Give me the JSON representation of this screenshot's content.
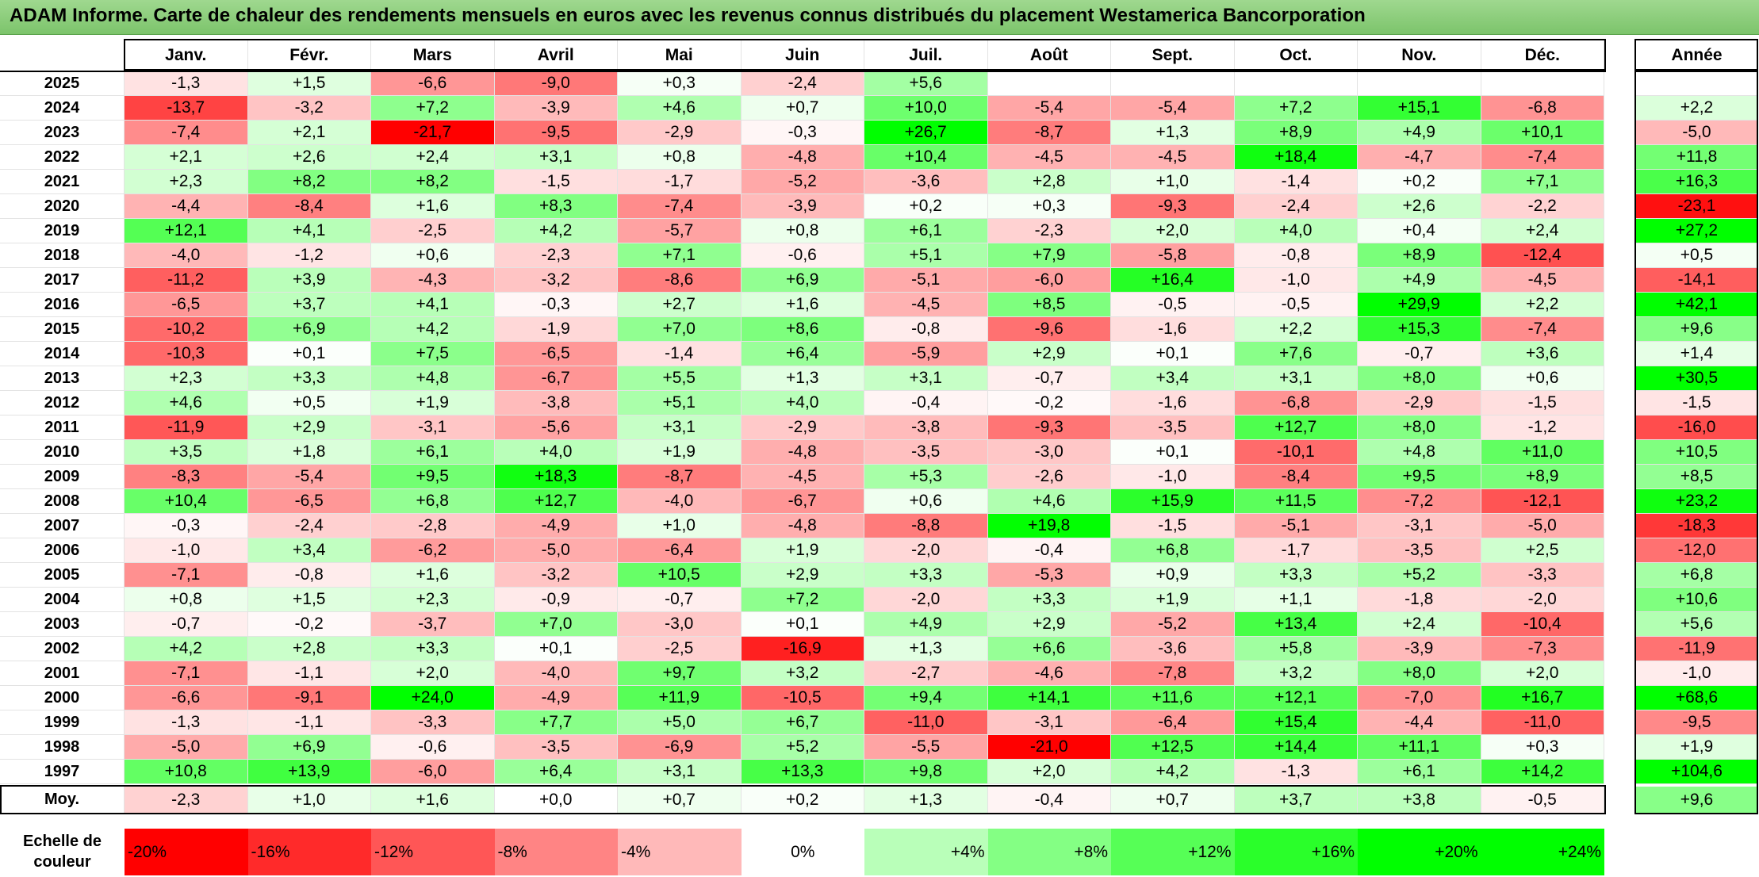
{
  "chart_data": {
    "type": "heatmap",
    "title": "ADAM Informe. Carte de chaleur des rendements mensuels en euros avec les revenus connus distribués du placement Westamerica Bancorporation",
    "columns": [
      "Janv.",
      "Févr.",
      "Mars",
      "Avril",
      "Mai",
      "Juin",
      "Juil.",
      "Août",
      "Sept.",
      "Oct.",
      "Nov.",
      "Déc."
    ],
    "year_header": "Année",
    "rows": [
      {
        "year": "2025",
        "values": [
          "-1,3",
          "+1,5",
          "-6,6",
          "-9,0",
          "+0,3",
          "-2,4",
          "+5,6",
          "",
          "",
          "",
          "",
          ""
        ],
        "annual": ""
      },
      {
        "year": "2024",
        "values": [
          "-13,7",
          "-3,2",
          "+7,2",
          "-3,9",
          "+4,6",
          "+0,7",
          "+10,0",
          "-5,4",
          "-5,4",
          "+7,2",
          "+15,1",
          "-6,8"
        ],
        "annual": "+2,2"
      },
      {
        "year": "2023",
        "values": [
          "-7,4",
          "+2,1",
          "-21,7",
          "-9,5",
          "-2,9",
          "-0,3",
          "+26,7",
          "-8,7",
          "+1,3",
          "+8,9",
          "+4,9",
          "+10,1"
        ],
        "annual": "-5,0"
      },
      {
        "year": "2022",
        "values": [
          "+2,1",
          "+2,6",
          "+2,4",
          "+3,1",
          "+0,8",
          "-4,8",
          "+10,4",
          "-4,5",
          "-4,5",
          "+18,4",
          "-4,7",
          "-7,4"
        ],
        "annual": "+11,8"
      },
      {
        "year": "2021",
        "values": [
          "+2,3",
          "+8,2",
          "+8,2",
          "-1,5",
          "-1,7",
          "-5,2",
          "-3,6",
          "+2,8",
          "+1,0",
          "-1,4",
          "+0,2",
          "+7,1"
        ],
        "annual": "+16,3"
      },
      {
        "year": "2020",
        "values": [
          "-4,4",
          "-8,4",
          "+1,6",
          "+8,3",
          "-7,4",
          "-3,9",
          "+0,2",
          "+0,3",
          "-9,3",
          "-2,4",
          "+2,6",
          "-2,2"
        ],
        "annual": "-23,1"
      },
      {
        "year": "2019",
        "values": [
          "+12,1",
          "+4,1",
          "-2,5",
          "+4,2",
          "-5,7",
          "+0,8",
          "+6,1",
          "-2,3",
          "+2,0",
          "+4,0",
          "+0,4",
          "+2,4"
        ],
        "annual": "+27,2"
      },
      {
        "year": "2018",
        "values": [
          "-4,0",
          "-1,2",
          "+0,6",
          "-2,3",
          "+7,1",
          "-0,6",
          "+5,1",
          "+7,9",
          "-5,8",
          "-0,8",
          "+8,9",
          "-12,4"
        ],
        "annual": "+0,5"
      },
      {
        "year": "2017",
        "values": [
          "-11,2",
          "+3,9",
          "-4,3",
          "-3,2",
          "-8,6",
          "+6,9",
          "-5,1",
          "-6,0",
          "+16,4",
          "-1,0",
          "+4,9",
          "-4,5"
        ],
        "annual": "-14,1"
      },
      {
        "year": "2016",
        "values": [
          "-6,5",
          "+3,7",
          "+4,1",
          "-0,3",
          "+2,7",
          "+1,6",
          "-4,5",
          "+8,5",
          "-0,5",
          "-0,5",
          "+29,9",
          "+2,2"
        ],
        "annual": "+42,1"
      },
      {
        "year": "2015",
        "values": [
          "-10,2",
          "+6,9",
          "+4,2",
          "-1,9",
          "+7,0",
          "+8,6",
          "-0,8",
          "-9,6",
          "-1,6",
          "+2,2",
          "+15,3",
          "-7,4"
        ],
        "annual": "+9,6"
      },
      {
        "year": "2014",
        "values": [
          "-10,3",
          "+0,1",
          "+7,5",
          "-6,5",
          "-1,4",
          "+6,4",
          "-5,9",
          "+2,9",
          "+0,1",
          "+7,6",
          "-0,7",
          "+3,6"
        ],
        "annual": "+1,4"
      },
      {
        "year": "2013",
        "values": [
          "+2,3",
          "+3,3",
          "+4,8",
          "-6,7",
          "+5,5",
          "+1,3",
          "+3,1",
          "-0,7",
          "+3,4",
          "+3,1",
          "+8,0",
          "+0,6"
        ],
        "annual": "+30,5"
      },
      {
        "year": "2012",
        "values": [
          "+4,6",
          "+0,5",
          "+1,9",
          "-3,8",
          "+5,1",
          "+4,0",
          "-0,4",
          "-0,2",
          "-1,6",
          "-6,8",
          "-2,9",
          "-1,5"
        ],
        "annual": "-1,5"
      },
      {
        "year": "2011",
        "values": [
          "-11,9",
          "+2,9",
          "-3,1",
          "-5,6",
          "+3,1",
          "-2,9",
          "-3,8",
          "-9,3",
          "-3,5",
          "+12,7",
          "+8,0",
          "-1,2"
        ],
        "annual": "-16,0"
      },
      {
        "year": "2010",
        "values": [
          "+3,5",
          "+1,8",
          "+6,1",
          "+4,0",
          "+1,9",
          "-4,8",
          "-3,5",
          "-3,0",
          "+0,1",
          "-10,1",
          "+4,8",
          "+11,0"
        ],
        "annual": "+10,5"
      },
      {
        "year": "2009",
        "values": [
          "-8,3",
          "-5,4",
          "+9,5",
          "+18,3",
          "-8,7",
          "-4,5",
          "+5,3",
          "-2,6",
          "-1,0",
          "-8,4",
          "+9,5",
          "+8,9"
        ],
        "annual": "+8,5"
      },
      {
        "year": "2008",
        "values": [
          "+10,4",
          "-6,5",
          "+6,8",
          "+12,7",
          "-4,0",
          "-6,7",
          "+0,6",
          "+4,6",
          "+15,9",
          "+11,5",
          "-7,2",
          "-12,1"
        ],
        "annual": "+23,2"
      },
      {
        "year": "2007",
        "values": [
          "-0,3",
          "-2,4",
          "-2,8",
          "-4,9",
          "+1,0",
          "-4,8",
          "-8,8",
          "+19,8",
          "-1,5",
          "-5,1",
          "-3,1",
          "-5,0"
        ],
        "annual": "-18,3"
      },
      {
        "year": "2006",
        "values": [
          "-1,0",
          "+3,4",
          "-6,2",
          "-5,0",
          "-6,4",
          "+1,9",
          "-2,0",
          "-0,4",
          "+6,8",
          "-1,7",
          "-3,5",
          "+2,5"
        ],
        "annual": "-12,0"
      },
      {
        "year": "2005",
        "values": [
          "-7,1",
          "-0,8",
          "+1,6",
          "-3,2",
          "+10,5",
          "+2,9",
          "+3,3",
          "-5,3",
          "+0,9",
          "+3,3",
          "+5,2",
          "-3,3"
        ],
        "annual": "+6,8"
      },
      {
        "year": "2004",
        "values": [
          "+0,8",
          "+1,5",
          "+2,3",
          "-0,9",
          "-0,7",
          "+7,2",
          "-2,0",
          "+3,3",
          "+1,9",
          "+1,1",
          "-1,8",
          "-2,0"
        ],
        "annual": "+10,6"
      },
      {
        "year": "2003",
        "values": [
          "-0,7",
          "-0,2",
          "-3,7",
          "+7,0",
          "-3,0",
          "+0,1",
          "+4,9",
          "+2,9",
          "-5,2",
          "+13,4",
          "+2,4",
          "-10,4"
        ],
        "annual": "+5,6"
      },
      {
        "year": "2002",
        "values": [
          "+4,2",
          "+2,8",
          "+3,3",
          "+0,1",
          "-2,5",
          "-16,9",
          "+1,3",
          "+6,6",
          "-3,6",
          "+5,8",
          "-3,9",
          "-7,3"
        ],
        "annual": "-11,9"
      },
      {
        "year": "2001",
        "values": [
          "-7,1",
          "-1,1",
          "+2,0",
          "-4,0",
          "+9,7",
          "+3,2",
          "-2,7",
          "-4,6",
          "-7,8",
          "+3,2",
          "+8,0",
          "+2,0"
        ],
        "annual": "-1,0"
      },
      {
        "year": "2000",
        "values": [
          "-6,6",
          "-9,1",
          "+24,0",
          "-4,9",
          "+11,9",
          "-10,5",
          "+9,4",
          "+14,1",
          "+11,6",
          "+12,1",
          "-7,0",
          "+16,7"
        ],
        "annual": "+68,6"
      },
      {
        "year": "1999",
        "values": [
          "-1,3",
          "-1,1",
          "-3,3",
          "+7,7",
          "+5,0",
          "+6,7",
          "-11,0",
          "-3,1",
          "-6,4",
          "+15,4",
          "-4,4",
          "-11,0"
        ],
        "annual": "-9,5"
      },
      {
        "year": "1998",
        "values": [
          "-5,0",
          "+6,9",
          "-0,6",
          "-3,5",
          "-6,9",
          "+5,2",
          "-5,5",
          "-21,0",
          "+12,5",
          "+14,4",
          "+11,1",
          "+0,3"
        ],
        "annual": "+1,9"
      },
      {
        "year": "1997",
        "values": [
          "+10,8",
          "+13,9",
          "-6,0",
          "+6,4",
          "+3,1",
          "+13,3",
          "+9,8",
          "+2,0",
          "+4,2",
          "-1,3",
          "+6,1",
          "+14,2"
        ],
        "annual": "+104,6"
      }
    ],
    "average": {
      "label": "Moy.",
      "values": [
        "-2,3",
        "+1,0",
        "+1,6",
        "+0,0",
        "+0,7",
        "+0,2",
        "+1,3",
        "-0,4",
        "+0,7",
        "+3,7",
        "+3,8",
        "-0,5"
      ],
      "annual": "+9,6"
    },
    "scale": {
      "label": "Echelle de couleur",
      "stops": [
        "-20%",
        "-16%",
        "-12%",
        "-8%",
        "-4%",
        "0%",
        "+4%",
        "+8%",
        "+12%",
        "+16%",
        "+20%",
        "+24%"
      ],
      "stop_values": [
        -20,
        -16,
        -12,
        -8,
        -4,
        0,
        4,
        8,
        12,
        16,
        20,
        24
      ]
    },
    "colors": {
      "negative": "#ff0000",
      "neutral": "#ffffff",
      "positive": "#00ff00",
      "title_bar": "#8fcf7d"
    }
  }
}
